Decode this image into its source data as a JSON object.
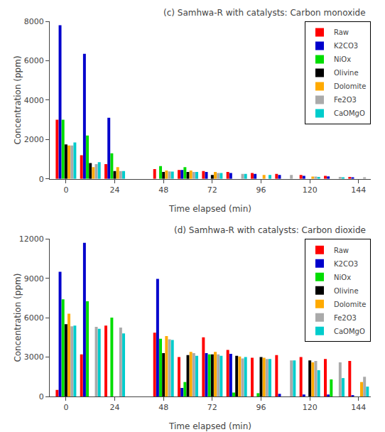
{
  "chart_data": [
    {
      "type": "bar",
      "title": "(c) Samhwa-R with catalysts: Carbon monoxide",
      "xlabel": "Time elapsed (min)",
      "ylabel": "Concentration (ppm)",
      "x": [
        0,
        12,
        24,
        48,
        60,
        72,
        84,
        96,
        108,
        120,
        132,
        144
      ],
      "xlim": [
        -8,
        150
      ],
      "xticks": [
        0,
        24,
        48,
        72,
        96,
        120,
        144
      ],
      "ylim": [
        0,
        8000
      ],
      "yticks": [
        0,
        2000,
        4000,
        6000,
        8000
      ],
      "grid": false,
      "legend": "upper right",
      "series": [
        {
          "name": "Raw",
          "color": "#ff0000",
          "values": [
            3000,
            1200,
            750,
            500,
            450,
            400,
            350,
            300,
            250,
            200,
            150,
            100
          ]
        },
        {
          "name": "K2CO3",
          "color": "#0000cc",
          "values": [
            7800,
            6350,
            3100,
            0,
            450,
            350,
            300,
            250,
            200,
            150,
            130,
            80
          ]
        },
        {
          "name": "NiOx",
          "color": "#00dd00",
          "values": [
            3000,
            2200,
            1300,
            650,
            600,
            0,
            0,
            0,
            0,
            0,
            0,
            0
          ]
        },
        {
          "name": "Olivine",
          "color": "#000000",
          "values": [
            1750,
            800,
            400,
            350,
            350,
            200,
            0,
            0,
            0,
            0,
            0,
            0
          ]
        },
        {
          "name": "Dolomite",
          "color": "#ffaa00",
          "values": [
            1700,
            600,
            600,
            420,
            420,
            350,
            0,
            200,
            0,
            120,
            0,
            0
          ]
        },
        {
          "name": "Fe2O3",
          "color": "#aaaaaa",
          "values": [
            1700,
            750,
            400,
            380,
            350,
            300,
            250,
            0,
            200,
            120,
            100,
            80
          ]
        },
        {
          "name": "CaOMgO",
          "color": "#00cccc",
          "values": [
            1850,
            850,
            400,
            370,
            350,
            300,
            250,
            200,
            0,
            100,
            80,
            0
          ]
        }
      ]
    },
    {
      "type": "bar",
      "title": "(d) Samhwa-R with catalysts: Carbon dioxide",
      "xlabel": "Time elapsed (min)",
      "ylabel": "Concentration (ppm)",
      "x": [
        0,
        12,
        24,
        48,
        60,
        72,
        84,
        96,
        108,
        120,
        132,
        144
      ],
      "xlim": [
        -8,
        150
      ],
      "xticks": [
        0,
        24,
        48,
        72,
        96,
        120,
        144
      ],
      "ylim": [
        0,
        12000
      ],
      "yticks": [
        0,
        3000,
        6000,
        9000,
        12000
      ],
      "grid": false,
      "legend": "upper right",
      "series": [
        {
          "name": "Raw",
          "color": "#ff0000",
          "values": [
            500,
            3200,
            5400,
            4850,
            3000,
            4500,
            3550,
            2950,
            3150,
            3000,
            2850,
            2700
          ]
        },
        {
          "name": "K2CO3",
          "color": "#0000cc",
          "values": [
            9500,
            11700,
            0,
            8950,
            650,
            3300,
            3250,
            0,
            200,
            150,
            150,
            100
          ]
        },
        {
          "name": "NiOx",
          "color": "#00dd00",
          "values": [
            7400,
            7250,
            6000,
            4400,
            1100,
            3200,
            300,
            250,
            0,
            0,
            1300,
            0
          ]
        },
        {
          "name": "Olivine",
          "color": "#000000",
          "values": [
            5500,
            0,
            0,
            3300,
            3150,
            3200,
            3100,
            3000,
            0,
            2750,
            0,
            0
          ]
        },
        {
          "name": "Dolomite",
          "color": "#ffaa00",
          "values": [
            6300,
            0,
            0,
            4600,
            3400,
            3400,
            3050,
            2950,
            0,
            2600,
            0,
            1100
          ]
        },
        {
          "name": "Fe2O3",
          "color": "#aaaaaa",
          "values": [
            5350,
            5300,
            5250,
            4350,
            3300,
            3200,
            2900,
            2850,
            2750,
            2700,
            2600,
            1500
          ]
        },
        {
          "name": "CaOMgO",
          "color": "#00cccc",
          "values": [
            5400,
            5150,
            4800,
            4300,
            3100,
            3100,
            3000,
            2850,
            2750,
            2000,
            1400,
            750
          ]
        }
      ]
    }
  ]
}
